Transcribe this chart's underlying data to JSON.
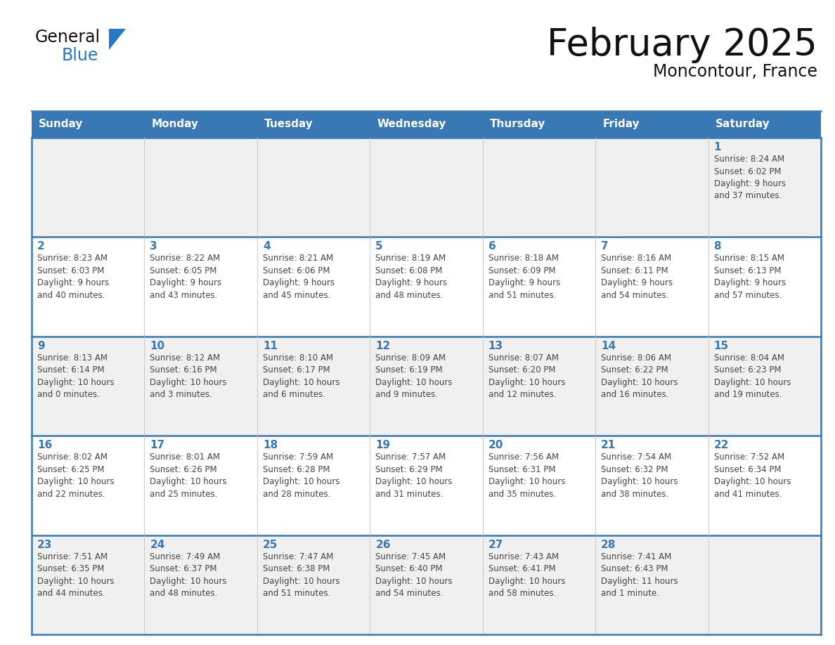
{
  "title": "February 2025",
  "subtitle": "Moncontour, France",
  "header_bg_color": "#3878b4",
  "header_text_color": "#ffffff",
  "day_names": [
    "Sunday",
    "Monday",
    "Tuesday",
    "Wednesday",
    "Thursday",
    "Friday",
    "Saturday"
  ],
  "cell_bg_row0": "#f0f0f0",
  "cell_bg_row1": "#ffffff",
  "cell_bg_row2": "#f0f0f0",
  "cell_bg_row3": "#ffffff",
  "cell_bg_row4": "#f0f0f0",
  "border_color_strong": "#3878b4",
  "border_color_light": "#c8c8c8",
  "day_num_color": "#3878b4",
  "text_color": "#444444",
  "title_color": "#111111",
  "logo_general_color": "#111111",
  "logo_blue_color": "#2878c8",
  "logo_triangle_color": "#2878c8",
  "weeks": [
    [
      {
        "day": null,
        "info": null
      },
      {
        "day": null,
        "info": null
      },
      {
        "day": null,
        "info": null
      },
      {
        "day": null,
        "info": null
      },
      {
        "day": null,
        "info": null
      },
      {
        "day": null,
        "info": null
      },
      {
        "day": 1,
        "info": "Sunrise: 8:24 AM\nSunset: 6:02 PM\nDaylight: 9 hours\nand 37 minutes."
      }
    ],
    [
      {
        "day": 2,
        "info": "Sunrise: 8:23 AM\nSunset: 6:03 PM\nDaylight: 9 hours\nand 40 minutes."
      },
      {
        "day": 3,
        "info": "Sunrise: 8:22 AM\nSunset: 6:05 PM\nDaylight: 9 hours\nand 43 minutes."
      },
      {
        "day": 4,
        "info": "Sunrise: 8:21 AM\nSunset: 6:06 PM\nDaylight: 9 hours\nand 45 minutes."
      },
      {
        "day": 5,
        "info": "Sunrise: 8:19 AM\nSunset: 6:08 PM\nDaylight: 9 hours\nand 48 minutes."
      },
      {
        "day": 6,
        "info": "Sunrise: 8:18 AM\nSunset: 6:09 PM\nDaylight: 9 hours\nand 51 minutes."
      },
      {
        "day": 7,
        "info": "Sunrise: 8:16 AM\nSunset: 6:11 PM\nDaylight: 9 hours\nand 54 minutes."
      },
      {
        "day": 8,
        "info": "Sunrise: 8:15 AM\nSunset: 6:13 PM\nDaylight: 9 hours\nand 57 minutes."
      }
    ],
    [
      {
        "day": 9,
        "info": "Sunrise: 8:13 AM\nSunset: 6:14 PM\nDaylight: 10 hours\nand 0 minutes."
      },
      {
        "day": 10,
        "info": "Sunrise: 8:12 AM\nSunset: 6:16 PM\nDaylight: 10 hours\nand 3 minutes."
      },
      {
        "day": 11,
        "info": "Sunrise: 8:10 AM\nSunset: 6:17 PM\nDaylight: 10 hours\nand 6 minutes."
      },
      {
        "day": 12,
        "info": "Sunrise: 8:09 AM\nSunset: 6:19 PM\nDaylight: 10 hours\nand 9 minutes."
      },
      {
        "day": 13,
        "info": "Sunrise: 8:07 AM\nSunset: 6:20 PM\nDaylight: 10 hours\nand 12 minutes."
      },
      {
        "day": 14,
        "info": "Sunrise: 8:06 AM\nSunset: 6:22 PM\nDaylight: 10 hours\nand 16 minutes."
      },
      {
        "day": 15,
        "info": "Sunrise: 8:04 AM\nSunset: 6:23 PM\nDaylight: 10 hours\nand 19 minutes."
      }
    ],
    [
      {
        "day": 16,
        "info": "Sunrise: 8:02 AM\nSunset: 6:25 PM\nDaylight: 10 hours\nand 22 minutes."
      },
      {
        "day": 17,
        "info": "Sunrise: 8:01 AM\nSunset: 6:26 PM\nDaylight: 10 hours\nand 25 minutes."
      },
      {
        "day": 18,
        "info": "Sunrise: 7:59 AM\nSunset: 6:28 PM\nDaylight: 10 hours\nand 28 minutes."
      },
      {
        "day": 19,
        "info": "Sunrise: 7:57 AM\nSunset: 6:29 PM\nDaylight: 10 hours\nand 31 minutes."
      },
      {
        "day": 20,
        "info": "Sunrise: 7:56 AM\nSunset: 6:31 PM\nDaylight: 10 hours\nand 35 minutes."
      },
      {
        "day": 21,
        "info": "Sunrise: 7:54 AM\nSunset: 6:32 PM\nDaylight: 10 hours\nand 38 minutes."
      },
      {
        "day": 22,
        "info": "Sunrise: 7:52 AM\nSunset: 6:34 PM\nDaylight: 10 hours\nand 41 minutes."
      }
    ],
    [
      {
        "day": 23,
        "info": "Sunrise: 7:51 AM\nSunset: 6:35 PM\nDaylight: 10 hours\nand 44 minutes."
      },
      {
        "day": 24,
        "info": "Sunrise: 7:49 AM\nSunset: 6:37 PM\nDaylight: 10 hours\nand 48 minutes."
      },
      {
        "day": 25,
        "info": "Sunrise: 7:47 AM\nSunset: 6:38 PM\nDaylight: 10 hours\nand 51 minutes."
      },
      {
        "day": 26,
        "info": "Sunrise: 7:45 AM\nSunset: 6:40 PM\nDaylight: 10 hours\nand 54 minutes."
      },
      {
        "day": 27,
        "info": "Sunrise: 7:43 AM\nSunset: 6:41 PM\nDaylight: 10 hours\nand 58 minutes."
      },
      {
        "day": 28,
        "info": "Sunrise: 7:41 AM\nSunset: 6:43 PM\nDaylight: 11 hours\nand 1 minute."
      },
      {
        "day": null,
        "info": null
      }
    ]
  ]
}
